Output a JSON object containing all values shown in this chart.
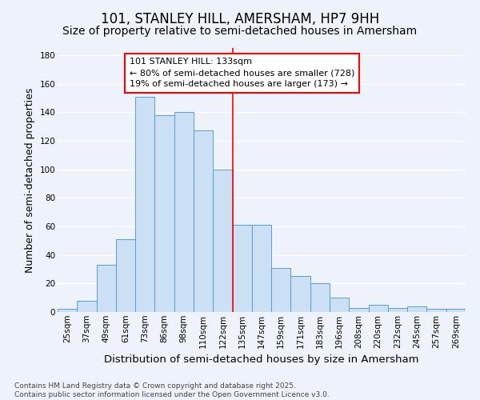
{
  "title": "101, STANLEY HILL, AMERSHAM, HP7 9HH",
  "subtitle": "Size of property relative to semi-detached houses in Amersham",
  "xlabel": "Distribution of semi-detached houses by size in Amersham",
  "ylabel": "Number of semi-detached properties",
  "bins": [
    "25sqm",
    "37sqm",
    "49sqm",
    "61sqm",
    "73sqm",
    "86sqm",
    "98sqm",
    "110sqm",
    "122sqm",
    "135sqm",
    "147sqm",
    "159sqm",
    "171sqm",
    "183sqm",
    "196sqm",
    "208sqm",
    "220sqm",
    "232sqm",
    "245sqm",
    "257sqm",
    "269sqm"
  ],
  "values": [
    2,
    8,
    33,
    51,
    151,
    138,
    140,
    127,
    100,
    61,
    61,
    31,
    25,
    20,
    10,
    3,
    5,
    3,
    4,
    2,
    2
  ],
  "bar_color": "#cce0f5",
  "bar_edge_color": "#5b9bd5",
  "vline_color": "red",
  "annotation_text": "101 STANLEY HILL: 133sqm\n← 80% of semi-detached houses are smaller (728)\n19% of semi-detached houses are larger (173) →",
  "annotation_box_color": "white",
  "annotation_box_edge_color": "red",
  "ylim": [
    0,
    185
  ],
  "yticks": [
    0,
    20,
    40,
    60,
    80,
    100,
    120,
    140,
    160,
    180
  ],
  "bg_color": "#eef2fb",
  "grid_color": "white",
  "footnote": "Contains HM Land Registry data © Crown copyright and database right 2025.\nContains public sector information licensed under the Open Government Licence v3.0.",
  "title_fontsize": 12,
  "subtitle_fontsize": 10,
  "xlabel_fontsize": 9.5,
  "ylabel_fontsize": 9,
  "tick_fontsize": 7.5,
  "annotation_fontsize": 8,
  "footnote_fontsize": 6.5
}
